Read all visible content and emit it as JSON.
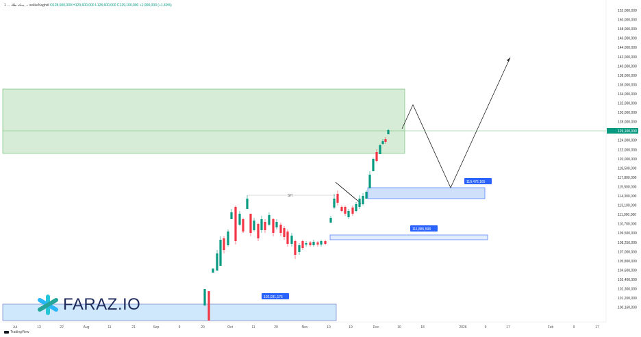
{
  "header": {
    "symbol": "1 ... ،ﺳﮑﻪ ﻃﻼ, ،، sekkeNaghdi",
    "open": "O128,600,000",
    "high": "H129,600,000",
    "low": "L128,600,000",
    "close": "C129,100,000",
    "change": "+1,900,000 (+1.49%)"
  },
  "footer": {
    "brand": "TradingView"
  },
  "logo": {
    "text": "FARAZ.IO",
    "icon": "asterisk-logo-icon"
  },
  "colors": {
    "up": "#089981",
    "down": "#f23645",
    "zone_green": "#c8e6c9",
    "zone_blue": "#bbdefb",
    "label_blue": "#2962ff"
  },
  "chart_data": {
    "type": "candlestick",
    "y_ticks": [
      "152,000,000",
      "150,000,000",
      "148,000,000",
      "146,000,000",
      "144,000,000",
      "142,000,000",
      "140,000,000",
      "138,000,000",
      "136,000,000",
      "134,000,000",
      "132,000,000",
      "130,000,000",
      "128,000,000",
      "126,000,000",
      "124,000,000",
      "122,000,000",
      "120,000,000",
      "118,500,000",
      "117,800,000",
      "115,500,000",
      "114,300,000",
      "113,100,000",
      "111,900,000",
      "110,700,000",
      "109,500,000",
      "108,250,000",
      "107,000,000",
      "105,800,000",
      "104,600,000",
      "103,400,000",
      "102,300,000",
      "101,200,000",
      "100,160,000"
    ],
    "x_ticks": [
      "Jul",
      "13",
      "22",
      "Aug",
      "11",
      "21",
      "Sep",
      "9",
      "20",
      "Oct",
      "11",
      "20",
      "Nov",
      "10",
      "19",
      "Dec",
      "10",
      "18",
      "2026",
      "9",
      "17",
      "Feb",
      "9",
      "17"
    ],
    "current_price_label": "129,100,000",
    "annotations": [
      {
        "name": "level-1",
        "label": "119,476,165"
      },
      {
        "name": "level-2",
        "label": "111,885,598"
      },
      {
        "name": "level-3",
        "label": "102,031,175"
      },
      {
        "name": "swing-high",
        "label": "SH"
      }
    ],
    "candles_description": "daily candles from late September to early December"
  }
}
